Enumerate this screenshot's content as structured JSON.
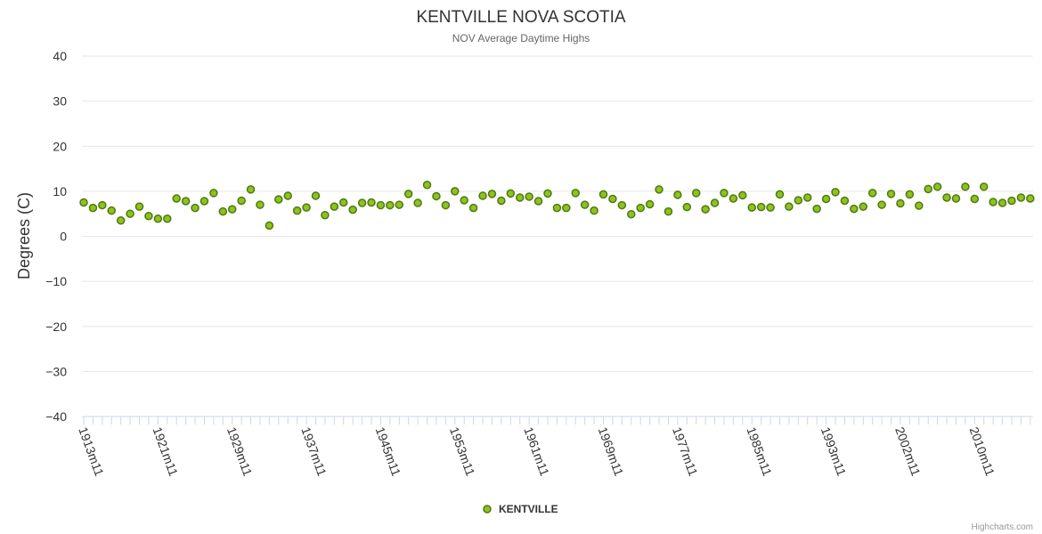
{
  "chart_data": {
    "type": "scatter",
    "title": "KENTVILLE NOVA SCOTIA",
    "subtitle": "NOV Average Daytime Highs",
    "ylabel": "Degrees (C)",
    "xlabel": "",
    "ylim": [
      -40,
      40
    ],
    "yticks": [
      40,
      30,
      20,
      10,
      0,
      -10,
      -20,
      -30,
      -40
    ],
    "ytick_labels": [
      "40",
      "30",
      "20",
      "10",
      "0",
      "−10",
      "−20",
      "−30",
      "−40"
    ],
    "x_start_year": 1913,
    "x_end_year": 2016,
    "x_tick_labels": [
      "1913m11",
      "1921m11",
      "1929m11",
      "1937m11",
      "1945m11",
      "1953m11",
      "1961m11",
      "1969m11",
      "1977m11",
      "1985m11",
      "1993m11",
      "2002m11",
      "2010m11"
    ],
    "x_tick_positions": [
      0,
      8,
      16,
      24,
      32,
      40,
      48,
      56,
      64,
      72,
      80,
      88,
      96
    ],
    "grid": true,
    "legend_position": "bottom-center",
    "series": [
      {
        "name": "KENTVILLE",
        "color": "#8fc21e",
        "border_color": "#4d7a10",
        "values": [
          7.5,
          6.3,
          6.9,
          5.7,
          3.5,
          5.0,
          6.6,
          4.5,
          3.9,
          3.9,
          8.4,
          7.8,
          6.3,
          7.8,
          9.6,
          5.5,
          6.0,
          7.9,
          10.4,
          7.0,
          2.4,
          8.2,
          9.0,
          5.7,
          6.4,
          9.0,
          4.7,
          6.6,
          7.5,
          5.9,
          7.4,
          7.5,
          6.9,
          6.9,
          7.0,
          9.4,
          7.4,
          11.4,
          8.9,
          6.9,
          10.0,
          8.0,
          6.3,
          9.0,
          9.4,
          7.9,
          9.5,
          8.6,
          8.8,
          7.8,
          9.5,
          6.3,
          6.3,
          9.6,
          7.0,
          5.7,
          9.3,
          8.3,
          6.9,
          4.9,
          6.3,
          7.1,
          10.4,
          5.5,
          9.2,
          6.5,
          9.6,
          6.0,
          7.4,
          9.6,
          8.4,
          9.1,
          6.4,
          6.5,
          6.4,
          9.3,
          6.6,
          8.0,
          8.6,
          6.1,
          8.3,
          9.8,
          7.9,
          6.1,
          6.6,
          9.6,
          7.0,
          9.4,
          7.3,
          9.3,
          6.8,
          10.5,
          11.0,
          8.6,
          8.4,
          11.0,
          8.3,
          11.0,
          7.6,
          7.4,
          7.9,
          8.6,
          8.4
        ]
      }
    ]
  },
  "credits": "Highcharts.com"
}
